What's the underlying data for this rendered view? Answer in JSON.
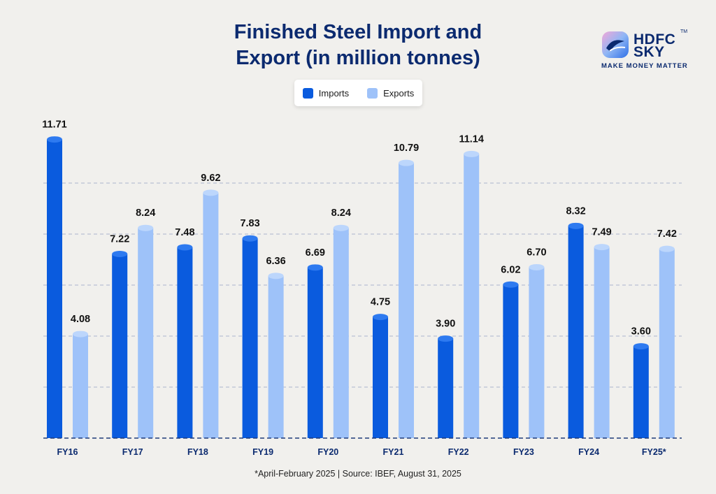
{
  "header": {
    "title_line1": "Finished Steel Import and",
    "title_line2": "Export (in million tonnes)"
  },
  "logo": {
    "brand_line1": "HDFC",
    "brand_line2": "SKY",
    "trademark": "TM",
    "tagline": "MAKE MONEY MATTER",
    "icon": "hdfc-sky-logo-icon"
  },
  "legend": {
    "imports_label": "Imports",
    "exports_label": "Exports"
  },
  "colors": {
    "imports": "#0a5bde",
    "imports_top": "#2e7af0",
    "exports": "#9ec2f9",
    "exports_top": "#bcd6fc",
    "title": "#0b2a6f",
    "gridline": "#b9bfd4"
  },
  "chart_data": {
    "type": "bar",
    "title": "Finished Steel Import and Export (in million tonnes)",
    "categories": [
      "FY16",
      "FY17",
      "FY18",
      "FY19",
      "FY20",
      "FY21",
      "FY22",
      "FY23",
      "FY24",
      "FY25*"
    ],
    "series": [
      {
        "name": "Imports",
        "values": [
          11.71,
          7.22,
          7.48,
          7.83,
          6.69,
          4.75,
          3.9,
          6.02,
          8.32,
          3.6
        ]
      },
      {
        "name": "Exports",
        "values": [
          4.08,
          8.24,
          9.62,
          6.36,
          8.24,
          10.79,
          11.14,
          6.7,
          7.49,
          7.42
        ]
      }
    ],
    "value_labels": {
      "Imports": [
        "11.71",
        "7.22",
        "7.48",
        "7.83",
        "6.69",
        "4.75",
        "3.90",
        "6.02",
        "8.32",
        "3.60"
      ],
      "Exports": [
        "4.08",
        "8.24",
        "9.62",
        "6.36",
        "8.24",
        "10.79",
        "11.14",
        "6.70",
        "7.49",
        "7.42"
      ]
    },
    "xlabel": "",
    "ylabel": "",
    "ylim": [
      0,
      12
    ],
    "gridlines": [
      2,
      4,
      6,
      8,
      10
    ],
    "grid": true,
    "legend_position": "top-center"
  },
  "footnote": "*April-February 2025  |  Source: IBEF, August 31, 2025"
}
